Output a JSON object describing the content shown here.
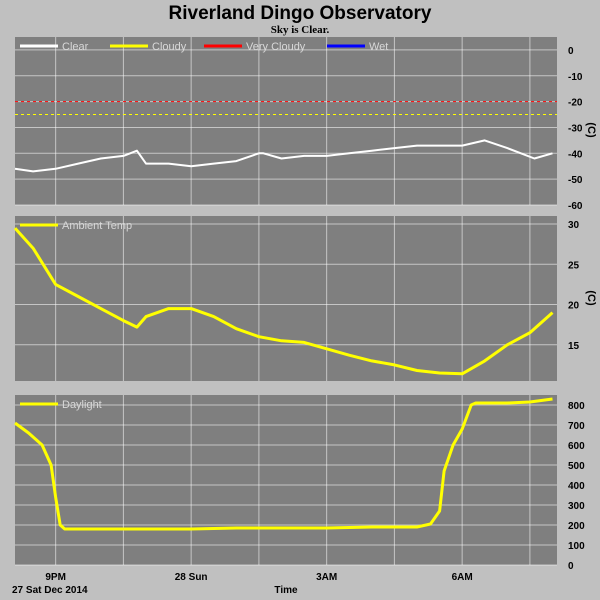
{
  "title": "Riverland Dingo Observatory",
  "subtitle": "Sky is Clear.",
  "x_axis": {
    "label": "Time",
    "date_label": "27 Sat Dec 2014",
    "ticks": [
      "9PM",
      "28 Sun",
      "3AM",
      "6AM"
    ]
  },
  "colors": {
    "page_bg": "#c0c0c0",
    "plot_bg": "#7f7f7f",
    "grid": "#ffffff",
    "clear": "#ffffff",
    "cloudy": "#ffff00",
    "very_cloudy": "#ff0000",
    "wet": "#0000ff",
    "temp": "#ffff00",
    "daylight": "#ffff00"
  },
  "chart_data": [
    {
      "type": "line",
      "title": "",
      "ylabel": "(C)",
      "ylim": [
        -60,
        5
      ],
      "yticks": [
        "0",
        "-10",
        "-20",
        "-30",
        "-40",
        "-50",
        "-60"
      ],
      "x_unit": "hours after 9PM",
      "xlim": [
        -0.9,
        11.1
      ],
      "legend": [
        "Clear",
        "Cloudy",
        "Very Cloudy",
        "Wet"
      ],
      "thresholds": [
        {
          "name": "Very Cloudy",
          "value": -20
        },
        {
          "name": "Cloudy",
          "value": -25
        }
      ],
      "series": [
        {
          "name": "Clear",
          "x": [
            -0.9,
            -0.5,
            0,
            0.5,
            1,
            1.5,
            1.8,
            2.0,
            2.5,
            3,
            3.5,
            4,
            4.5,
            4.6,
            5,
            5.5,
            6,
            6.5,
            7,
            7.5,
            8,
            8.5,
            9,
            9.5,
            10,
            10.3,
            10.6,
            11.0
          ],
          "y": [
            -46,
            -47,
            -46,
            -44,
            -42,
            -41,
            -39,
            -44,
            -44,
            -45,
            -44,
            -43,
            -40,
            -40,
            -42,
            -41,
            -41,
            -40,
            -39,
            -38,
            -37,
            -37,
            -37,
            -35,
            -38,
            -40,
            -42,
            -40
          ]
        }
      ]
    },
    {
      "type": "line",
      "title": "",
      "ylabel": "(C)",
      "ylim": [
        10.5,
        31
      ],
      "yticks": [
        "30",
        "25",
        "20",
        "15"
      ],
      "xlim": [
        -0.9,
        11.1
      ],
      "legend": [
        "Ambient Temp"
      ],
      "series": [
        {
          "name": "Ambient Temp",
          "x": [
            -0.9,
            -0.5,
            0,
            0.5,
            1,
            1.5,
            1.8,
            2.0,
            2.5,
            3,
            3.5,
            4,
            4.5,
            5,
            5.5,
            6,
            6.5,
            7,
            7.5,
            8,
            8.5,
            9,
            9.5,
            10,
            10.5,
            11.0
          ],
          "y": [
            29.5,
            27,
            22.5,
            21,
            19.5,
            18,
            17.2,
            18.5,
            19.5,
            19.5,
            18.5,
            17,
            16,
            15.5,
            15.3,
            14.5,
            13.7,
            13,
            12.5,
            11.8,
            11.5,
            11.4,
            13,
            15,
            16.5,
            19
          ]
        }
      ]
    },
    {
      "type": "line",
      "title": "",
      "ylabel": "",
      "ylim": [
        0,
        850
      ],
      "yticks": [
        "800",
        "700",
        "600",
        "500",
        "400",
        "300",
        "200",
        "100",
        "0"
      ],
      "xlim": [
        -0.9,
        11.1
      ],
      "legend": [
        "Daylight"
      ],
      "series": [
        {
          "name": "Daylight",
          "x": [
            -0.9,
            -0.6,
            -0.3,
            -0.1,
            0,
            0.1,
            0.2,
            0.4,
            1,
            2,
            3,
            4,
            5,
            6,
            7,
            8,
            8.3,
            8.5,
            8.6,
            8.8,
            9.0,
            9.2,
            9.3,
            9.5,
            10,
            10.5,
            11.0
          ],
          "y": [
            710,
            660,
            600,
            500,
            340,
            200,
            180,
            180,
            180,
            180,
            180,
            185,
            185,
            185,
            190,
            190,
            205,
            270,
            470,
            600,
            680,
            800,
            810,
            810,
            810,
            815,
            830
          ]
        }
      ]
    }
  ]
}
